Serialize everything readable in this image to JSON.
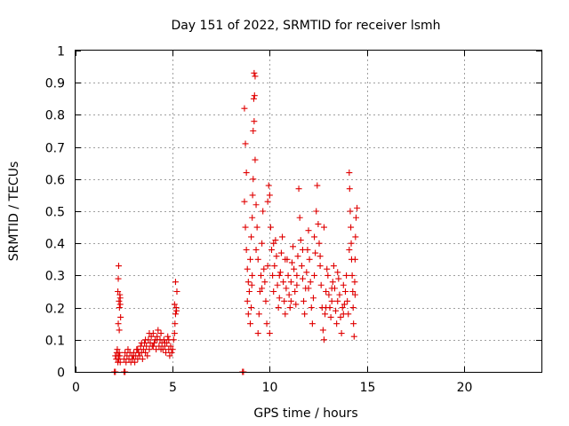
{
  "chart_data": {
    "type": "scatter",
    "title": "Day 151 of 2022, SRMTID for receiver lsmh",
    "xlabel": "GPS time / hours",
    "ylabel": "SRMTID / TECUs",
    "xlim": [
      0,
      24
    ],
    "ylim": [
      0,
      1
    ],
    "xticks": [
      "0",
      "5",
      "10",
      "15",
      "20"
    ],
    "yticks": [
      "0",
      "0.1",
      "0.2",
      "0.3",
      "0.4",
      "0.5",
      "0.6",
      "0.7",
      "0.8",
      "0.9",
      "1"
    ],
    "grid": true,
    "marker": "plus",
    "color": "#e00000",
    "series": [
      {
        "name": "SRMTID",
        "points": [
          [
            2.0,
            0.0
          ],
          [
            2.05,
            0.0
          ],
          [
            2.5,
            0.0
          ],
          [
            2.55,
            0.0
          ],
          [
            8.6,
            0.0
          ],
          [
            8.65,
            0.0
          ],
          [
            2.05,
            0.05
          ],
          [
            2.1,
            0.04
          ],
          [
            2.12,
            0.06
          ],
          [
            2.15,
            0.07
          ],
          [
            2.18,
            0.03
          ],
          [
            2.2,
            0.05
          ],
          [
            2.22,
            0.04
          ],
          [
            2.25,
            0.06
          ],
          [
            2.28,
            0.05
          ],
          [
            2.3,
            0.03
          ],
          [
            2.22,
            0.33
          ],
          [
            2.2,
            0.29
          ],
          [
            2.18,
            0.25
          ],
          [
            2.24,
            0.22
          ],
          [
            2.26,
            0.2
          ],
          [
            2.28,
            0.24
          ],
          [
            2.3,
            0.21
          ],
          [
            2.32,
            0.17
          ],
          [
            2.2,
            0.15
          ],
          [
            2.25,
            0.13
          ],
          [
            2.3,
            0.23
          ],
          [
            2.5,
            0.04
          ],
          [
            2.55,
            0.06
          ],
          [
            2.6,
            0.03
          ],
          [
            2.65,
            0.05
          ],
          [
            2.7,
            0.07
          ],
          [
            2.75,
            0.04
          ],
          [
            2.8,
            0.06
          ],
          [
            2.85,
            0.03
          ],
          [
            2.9,
            0.05
          ],
          [
            2.95,
            0.04
          ],
          [
            3.0,
            0.06
          ],
          [
            3.05,
            0.03
          ],
          [
            3.1,
            0.05
          ],
          [
            3.15,
            0.07
          ],
          [
            3.2,
            0.04
          ],
          [
            3.25,
            0.06
          ],
          [
            3.3,
            0.05
          ],
          [
            3.35,
            0.08
          ],
          [
            3.4,
            0.06
          ],
          [
            3.45,
            0.04
          ],
          [
            3.5,
            0.07
          ],
          [
            3.55,
            0.09
          ],
          [
            3.6,
            0.06
          ],
          [
            3.65,
            0.08
          ],
          [
            3.7,
            0.05
          ],
          [
            3.75,
            0.1
          ],
          [
            3.8,
            0.07
          ],
          [
            3.85,
            0.09
          ],
          [
            3.9,
            0.11
          ],
          [
            3.95,
            0.08
          ],
          [
            4.0,
            0.12
          ],
          [
            4.05,
            0.09
          ],
          [
            4.1,
            0.1
          ],
          [
            4.15,
            0.07
          ],
          [
            4.2,
            0.11
          ],
          [
            4.25,
            0.13
          ],
          [
            4.3,
            0.08
          ],
          [
            4.35,
            0.1
          ],
          [
            4.4,
            0.12
          ],
          [
            4.45,
            0.09
          ],
          [
            4.5,
            0.07
          ],
          [
            4.55,
            0.1
          ],
          [
            4.6,
            0.08
          ],
          [
            4.65,
            0.06
          ],
          [
            4.7,
            0.09
          ],
          [
            4.75,
            0.11
          ],
          [
            4.8,
            0.07
          ],
          [
            4.85,
            0.05
          ],
          [
            4.9,
            0.08
          ],
          [
            4.95,
            0.06
          ],
          [
            3.0,
            0.05
          ],
          [
            3.2,
            0.07
          ],
          [
            3.4,
            0.09
          ],
          [
            3.6,
            0.1
          ],
          [
            3.8,
            0.12
          ],
          [
            4.0,
            0.08
          ],
          [
            4.2,
            0.1
          ],
          [
            4.4,
            0.07
          ],
          [
            4.6,
            0.09
          ],
          [
            4.8,
            0.1
          ],
          [
            5.0,
            0.07
          ],
          [
            5.05,
            0.1
          ],
          [
            5.1,
            0.12
          ],
          [
            5.12,
            0.15
          ],
          [
            5.15,
            0.18
          ],
          [
            5.18,
            0.2
          ],
          [
            5.2,
            0.19
          ],
          [
            5.22,
            0.25
          ],
          [
            5.15,
            0.28
          ],
          [
            5.1,
            0.21
          ],
          [
            8.7,
            0.82
          ],
          [
            8.75,
            0.71
          ],
          [
            8.8,
            0.62
          ],
          [
            8.7,
            0.53
          ],
          [
            8.75,
            0.45
          ],
          [
            8.8,
            0.38
          ],
          [
            8.85,
            0.32
          ],
          [
            8.9,
            0.28
          ],
          [
            8.85,
            0.22
          ],
          [
            8.9,
            0.18
          ],
          [
            8.95,
            0.25
          ],
          [
            9.0,
            0.35
          ],
          [
            9.05,
            0.42
          ],
          [
            9.1,
            0.48
          ],
          [
            9.12,
            0.55
          ],
          [
            9.15,
            0.6
          ],
          [
            9.1,
            0.3
          ],
          [
            9.05,
            0.2
          ],
          [
            9.0,
            0.15
          ],
          [
            9.08,
            0.27
          ],
          [
            9.2,
            0.93
          ],
          [
            9.25,
            0.92
          ],
          [
            9.22,
            0.86
          ],
          [
            9.18,
            0.85
          ],
          [
            9.2,
            0.78
          ],
          [
            9.15,
            0.75
          ],
          [
            9.25,
            0.66
          ],
          [
            9.3,
            0.52
          ],
          [
            9.35,
            0.45
          ],
          [
            9.4,
            0.35
          ],
          [
            9.4,
            0.12
          ],
          [
            9.45,
            0.18
          ],
          [
            9.5,
            0.25
          ],
          [
            9.55,
            0.3
          ],
          [
            9.6,
            0.4
          ],
          [
            9.65,
            0.5
          ],
          [
            9.7,
            0.32
          ],
          [
            9.75,
            0.28
          ],
          [
            9.8,
            0.22
          ],
          [
            9.85,
            0.15
          ],
          [
            9.9,
            0.53
          ],
          [
            9.95,
            0.58
          ],
          [
            10.0,
            0.55
          ],
          [
            10.05,
            0.45
          ],
          [
            10.1,
            0.38
          ],
          [
            10.15,
            0.3
          ],
          [
            10.2,
            0.25
          ],
          [
            10.25,
            0.33
          ],
          [
            10.3,
            0.41
          ],
          [
            10.35,
            0.36
          ],
          [
            10.4,
            0.27
          ],
          [
            10.45,
            0.2
          ],
          [
            10.5,
            0.23
          ],
          [
            10.55,
            0.31
          ],
          [
            10.6,
            0.37
          ],
          [
            10.65,
            0.42
          ],
          [
            10.7,
            0.28
          ],
          [
            10.75,
            0.22
          ],
          [
            10.8,
            0.18
          ],
          [
            10.85,
            0.26
          ],
          [
            10.9,
            0.35
          ],
          [
            10.95,
            0.3
          ],
          [
            11.0,
            0.24
          ],
          [
            11.05,
            0.2
          ],
          [
            11.1,
            0.28
          ],
          [
            11.15,
            0.34
          ],
          [
            11.2,
            0.39
          ],
          [
            11.25,
            0.32
          ],
          [
            11.3,
            0.25
          ],
          [
            11.35,
            0.21
          ],
          [
            11.4,
            0.27
          ],
          [
            11.45,
            0.36
          ],
          [
            11.5,
            0.57
          ],
          [
            11.55,
            0.48
          ],
          [
            11.6,
            0.41
          ],
          [
            11.65,
            0.33
          ],
          [
            11.7,
            0.29
          ],
          [
            11.75,
            0.22
          ],
          [
            11.8,
            0.18
          ],
          [
            11.85,
            0.26
          ],
          [
            11.9,
            0.31
          ],
          [
            11.95,
            0.38
          ],
          [
            12.0,
            0.44
          ],
          [
            12.05,
            0.35
          ],
          [
            12.1,
            0.28
          ],
          [
            12.15,
            0.2
          ],
          [
            12.2,
            0.15
          ],
          [
            12.25,
            0.23
          ],
          [
            12.3,
            0.3
          ],
          [
            12.35,
            0.37
          ],
          [
            12.4,
            0.5
          ],
          [
            12.45,
            0.58
          ],
          [
            12.5,
            0.46
          ],
          [
            12.55,
            0.4
          ],
          [
            12.6,
            0.33
          ],
          [
            12.65,
            0.27
          ],
          [
            12.7,
            0.2
          ],
          [
            12.75,
            0.13
          ],
          [
            12.8,
            0.1
          ],
          [
            12.85,
            0.18
          ],
          [
            12.9,
            0.25
          ],
          [
            12.95,
            0.32
          ],
          [
            13.0,
            0.3
          ],
          [
            13.05,
            0.24
          ],
          [
            13.1,
            0.2
          ],
          [
            13.15,
            0.17
          ],
          [
            13.2,
            0.22
          ],
          [
            13.25,
            0.28
          ],
          [
            13.3,
            0.33
          ],
          [
            13.35,
            0.26
          ],
          [
            13.4,
            0.19
          ],
          [
            13.45,
            0.15
          ],
          [
            13.5,
            0.22
          ],
          [
            13.55,
            0.29
          ],
          [
            13.6,
            0.24
          ],
          [
            13.65,
            0.17
          ],
          [
            13.7,
            0.12
          ],
          [
            13.75,
            0.2
          ],
          [
            13.8,
            0.27
          ],
          [
            13.85,
            0.21
          ],
          [
            13.9,
            0.25
          ],
          [
            13.95,
            0.3
          ],
          [
            14.0,
            0.22
          ],
          [
            14.05,
            0.18
          ],
          [
            14.1,
            0.62
          ],
          [
            14.12,
            0.57
          ],
          [
            14.15,
            0.5
          ],
          [
            14.18,
            0.45
          ],
          [
            14.2,
            0.4
          ],
          [
            14.22,
            0.35
          ],
          [
            14.25,
            0.3
          ],
          [
            14.28,
            0.25
          ],
          [
            14.3,
            0.2
          ],
          [
            14.32,
            0.15
          ],
          [
            14.35,
            0.11
          ],
          [
            14.38,
            0.28
          ],
          [
            14.4,
            0.35
          ],
          [
            14.42,
            0.42
          ],
          [
            14.45,
            0.48
          ],
          [
            14.5,
            0.51
          ],
          [
            9.3,
            0.38
          ],
          [
            9.6,
            0.26
          ],
          [
            9.9,
            0.33
          ],
          [
            10.2,
            0.4
          ],
          [
            10.5,
            0.3
          ],
          [
            10.8,
            0.35
          ],
          [
            11.1,
            0.22
          ],
          [
            11.4,
            0.3
          ],
          [
            11.7,
            0.38
          ],
          [
            12.0,
            0.26
          ],
          [
            12.3,
            0.42
          ],
          [
            12.6,
            0.36
          ],
          [
            12.9,
            0.2
          ],
          [
            13.2,
            0.26
          ],
          [
            13.5,
            0.31
          ],
          [
            13.8,
            0.18
          ],
          [
            14.1,
            0.38
          ],
          [
            14.4,
            0.24
          ],
          [
            10.0,
            0.12
          ],
          [
            12.8,
            0.45
          ]
        ]
      }
    ]
  }
}
